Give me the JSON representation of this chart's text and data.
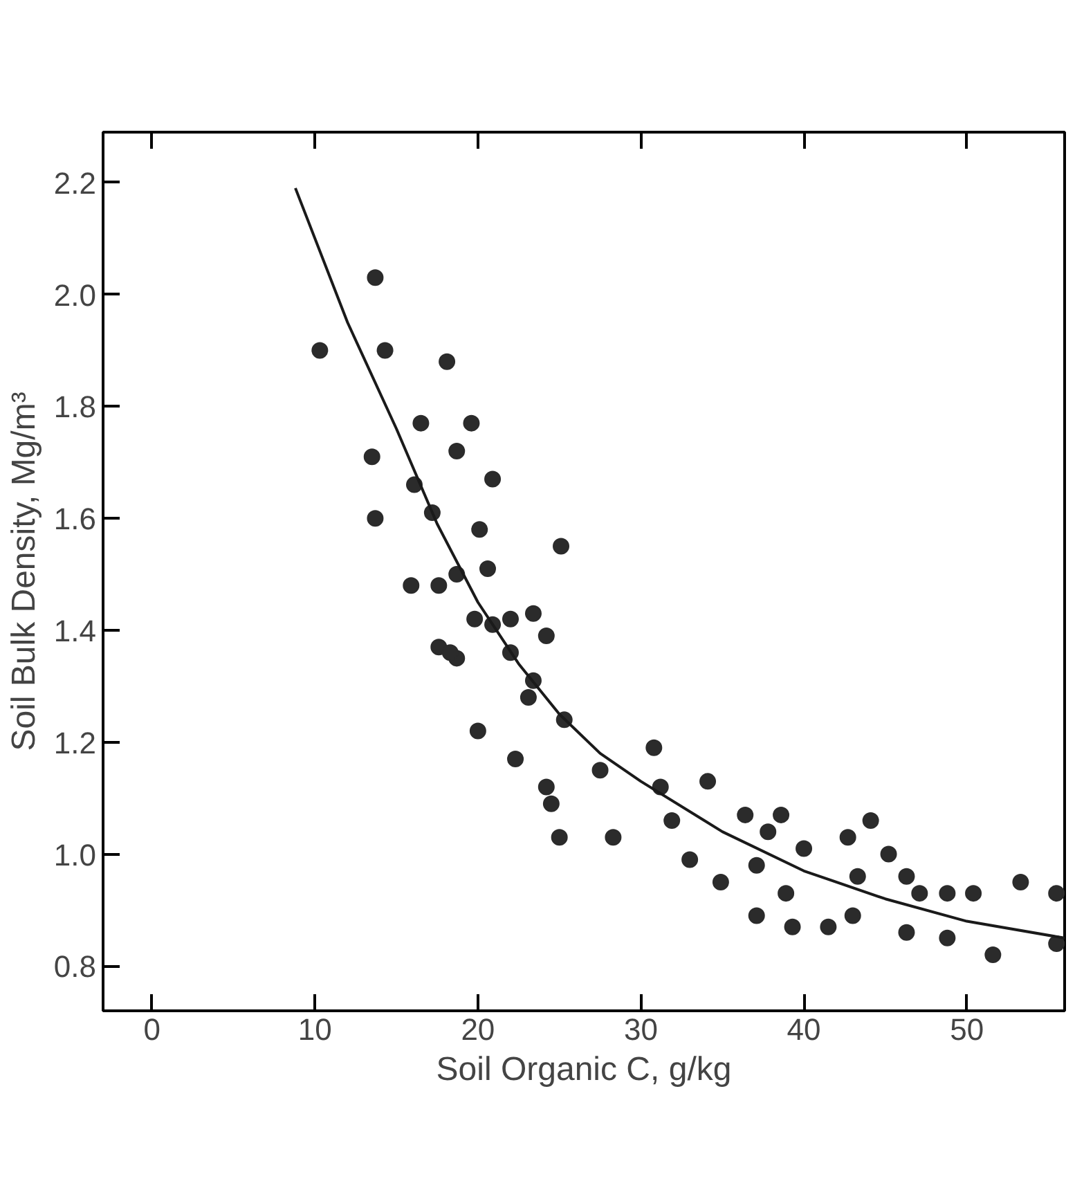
{
  "chart_data": {
    "type": "scatter",
    "xlabel": "Soil Organic C, g/kg",
    "ylabel": "Soil Bulk Density, Mg/m³",
    "xlim": [
      -3,
      56
    ],
    "ylim": [
      0.72,
      2.29
    ],
    "xticks": [
      0,
      10,
      20,
      30,
      40,
      50
    ],
    "yticks": [
      {
        "value": 0.8,
        "label": "0.8"
      },
      {
        "value": 1.0,
        "label": "1.0"
      },
      {
        "value": 1.2,
        "label": "1.2"
      },
      {
        "value": 1.4,
        "label": "1.4"
      },
      {
        "value": 1.6,
        "label": "1.6"
      },
      {
        "value": 1.8,
        "label": "1.8"
      },
      {
        "value": 2.0,
        "label": "2.0"
      },
      {
        "value": 2.2,
        "label": "2.2"
      }
    ],
    "grid": false,
    "series": [
      {
        "marker": "circle",
        "color": "#2b2b2b",
        "x": [
          13.7,
          10.3,
          14.3,
          18.1,
          19.6,
          16.5,
          13.5,
          18.7,
          20.9,
          13.7,
          16.1,
          17.2,
          20.1,
          25.1,
          18.7,
          15.9,
          17.6,
          18.7,
          19.8,
          22.0,
          17.6,
          20.6,
          23.4,
          24.2,
          18.3,
          20.9,
          22.0,
          23.4,
          23.1,
          20.0,
          22.3,
          25.3,
          24.2,
          24.5,
          27.5,
          25.0,
          28.3,
          30.8,
          31.2,
          31.9,
          34.1,
          33.0,
          34.9,
          36.4,
          37.8,
          38.6,
          37.1,
          38.9,
          37.1,
          39.3,
          41.5,
          43.0,
          40.0,
          42.7,
          44.1,
          43.3,
          45.2,
          46.3,
          47.1,
          46.3,
          48.8,
          48.8,
          50.4,
          51.6,
          53.3,
          55.5,
          55.5
        ],
        "values": [
          2.03,
          1.9,
          1.9,
          1.88,
          1.77,
          1.77,
          1.71,
          1.72,
          1.67,
          1.6,
          1.66,
          1.61,
          1.58,
          1.55,
          1.5,
          1.48,
          1.37,
          1.35,
          1.42,
          1.42,
          1.48,
          1.51,
          1.43,
          1.39,
          1.36,
          1.41,
          1.36,
          1.31,
          1.28,
          1.22,
          1.17,
          1.24,
          1.12,
          1.09,
          1.15,
          1.03,
          1.03,
          1.19,
          1.12,
          1.06,
          1.13,
          0.99,
          0.95,
          1.07,
          1.04,
          1.07,
          0.98,
          0.93,
          0.89,
          0.87,
          0.87,
          0.89,
          1.01,
          1.03,
          1.06,
          0.96,
          1.0,
          0.96,
          0.93,
          0.86,
          0.93,
          0.85,
          0.93,
          0.82,
          0.95,
          0.93,
          0.84
        ]
      },
      {
        "type": "line",
        "marker": "none",
        "color": "#1a1a1a",
        "line_style": "solid",
        "x": [
          8.8,
          12,
          15,
          17.5,
          20,
          22.5,
          25,
          27.5,
          30,
          35,
          40,
          45,
          50,
          56
        ],
        "values": [
          2.19,
          1.95,
          1.76,
          1.59,
          1.45,
          1.34,
          1.25,
          1.18,
          1.13,
          1.04,
          0.97,
          0.92,
          0.88,
          0.85
        ]
      }
    ]
  }
}
